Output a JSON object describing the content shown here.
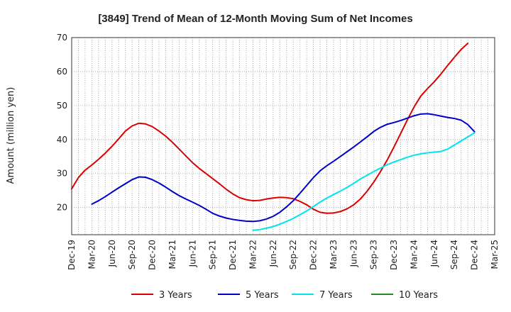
{
  "chart_data": {
    "type": "line",
    "title": "[3849]  Trend of Mean of 12-Month Moving Sum of Net Incomes",
    "ylabel": "Amount (million yen)",
    "xlabel": "",
    "ylim": [
      12,
      70
    ],
    "yticks": [
      20,
      30,
      40,
      50,
      60,
      70
    ],
    "grid": true,
    "legend_position": "bottom",
    "x_tick_labels": [
      "Dec-19",
      "Mar-20",
      "Jun-20",
      "Sep-20",
      "Dec-20",
      "Mar-21",
      "Jun-21",
      "Sep-21",
      "Dec-21",
      "Mar-22",
      "Jun-22",
      "Sep-22",
      "Dec-22",
      "Mar-23",
      "Jun-23",
      "Sep-23",
      "Dec-23",
      "Mar-24",
      "Jun-24",
      "Sep-24",
      "Dec-24",
      "Mar-25"
    ],
    "series": [
      {
        "name": "3 Years",
        "color": "#dd0000",
        "x": [
          "Dec-19",
          "Jan-20",
          "Feb-20",
          "Mar-20",
          "Apr-20",
          "May-20",
          "Jun-20",
          "Jul-20",
          "Aug-20",
          "Sep-20",
          "Oct-20",
          "Nov-20",
          "Dec-20",
          "Jan-21",
          "Feb-21",
          "Mar-21",
          "Apr-21",
          "May-21",
          "Jun-21",
          "Jul-21",
          "Aug-21",
          "Sep-21",
          "Oct-21",
          "Nov-21",
          "Dec-21",
          "Jan-22",
          "Feb-22",
          "Mar-22",
          "Apr-22",
          "May-22",
          "Jun-22",
          "Jul-22",
          "Aug-22",
          "Sep-22",
          "Oct-22",
          "Nov-22",
          "Dec-22",
          "Jan-23",
          "Feb-23",
          "Mar-23",
          "Apr-23",
          "May-23",
          "Jun-23",
          "Jul-23",
          "Aug-23",
          "Sep-23",
          "Oct-23",
          "Nov-23",
          "Dec-23",
          "Jan-24",
          "Feb-24",
          "Mar-24",
          "Apr-24",
          "May-24",
          "Jun-24",
          "Jul-24",
          "Aug-24",
          "Sep-24",
          "Oct-24",
          "Nov-24",
          "Dec-24"
        ],
        "values": [
          25.5,
          28.8,
          31.0,
          32.5,
          34.2,
          36.0,
          38.0,
          40.2,
          42.5,
          44.0,
          44.8,
          44.6,
          43.8,
          42.5,
          41.0,
          39.2,
          37.2,
          35.2,
          33.2,
          31.5,
          30.0,
          28.5,
          27.0,
          25.4,
          24.0,
          22.9,
          22.3,
          22.0,
          22.1,
          22.5,
          22.8,
          23.0,
          22.9,
          22.6,
          21.8,
          20.8,
          19.5,
          18.6,
          18.3,
          18.4,
          18.8,
          19.6,
          20.8,
          22.5,
          24.8,
          27.5,
          30.6,
          34.0,
          37.8,
          41.8,
          45.8,
          49.6,
          52.8,
          55.0,
          57.0,
          59.3,
          61.8,
          64.2,
          66.5,
          68.3,
          null
        ]
      },
      {
        "name": "5 Years",
        "color": "#0000cc",
        "x": [
          "Mar-20",
          "Apr-20",
          "May-20",
          "Jun-20",
          "Jul-20",
          "Aug-20",
          "Sep-20",
          "Oct-20",
          "Nov-20",
          "Dec-20",
          "Jan-21",
          "Feb-21",
          "Mar-21",
          "Apr-21",
          "May-21",
          "Jun-21",
          "Jul-21",
          "Aug-21",
          "Sep-21",
          "Oct-21",
          "Nov-21",
          "Dec-21",
          "Jan-22",
          "Feb-22",
          "Mar-22",
          "Apr-22",
          "May-22",
          "Jun-22",
          "Jul-22",
          "Aug-22",
          "Sep-22",
          "Oct-22",
          "Nov-22",
          "Dec-22",
          "Jan-23",
          "Feb-23",
          "Mar-23",
          "Apr-23",
          "May-23",
          "Jun-23",
          "Jul-23",
          "Aug-23",
          "Sep-23",
          "Oct-23",
          "Nov-23",
          "Dec-23",
          "Jan-24",
          "Feb-24",
          "Mar-24",
          "Apr-24",
          "May-24",
          "Jun-24",
          "Jul-24",
          "Aug-24",
          "Sep-24",
          "Oct-24",
          "Nov-24",
          "Dec-24"
        ],
        "values": [
          21.0,
          22.0,
          23.2,
          24.5,
          25.8,
          27.0,
          28.2,
          29.0,
          28.9,
          28.2,
          27.2,
          26.0,
          24.7,
          23.5,
          22.5,
          21.6,
          20.6,
          19.5,
          18.3,
          17.5,
          16.9,
          16.5,
          16.2,
          16.0,
          15.9,
          16.1,
          16.6,
          17.4,
          18.6,
          20.2,
          22.0,
          24.2,
          26.5,
          28.8,
          30.8,
          32.3,
          33.6,
          35.0,
          36.4,
          37.8,
          39.3,
          40.8,
          42.4,
          43.6,
          44.5,
          45.0,
          45.6,
          46.3,
          47.0,
          47.5,
          47.6,
          47.3,
          46.9,
          46.5,
          46.2,
          45.7,
          44.4,
          42.3
        ]
      },
      {
        "name": "7 Years",
        "color": "#00e5ee",
        "x": [
          "Mar-22",
          "Apr-22",
          "May-22",
          "Jun-22",
          "Jul-22",
          "Aug-22",
          "Sep-22",
          "Oct-22",
          "Nov-22",
          "Dec-22",
          "Jan-23",
          "Feb-23",
          "Mar-23",
          "Apr-23",
          "May-23",
          "Jun-23",
          "Jul-23",
          "Aug-23",
          "Sep-23",
          "Oct-23",
          "Nov-23",
          "Dec-23",
          "Jan-24",
          "Feb-24",
          "Mar-24",
          "Apr-24",
          "May-24",
          "Jun-24",
          "Jul-24",
          "Aug-24",
          "Sep-24",
          "Oct-24",
          "Nov-24",
          "Dec-24"
        ],
        "values": [
          13.3,
          13.5,
          13.9,
          14.4,
          15.1,
          15.9,
          16.8,
          17.9,
          19.0,
          20.3,
          21.6,
          22.8,
          23.8,
          24.8,
          25.9,
          27.1,
          28.4,
          29.5,
          30.6,
          31.6,
          32.6,
          33.4,
          34.1,
          34.8,
          35.4,
          35.8,
          36.1,
          36.3,
          36.5,
          37.2,
          38.4,
          39.6,
          40.8,
          42.0
        ]
      },
      {
        "name": "10 Years",
        "color": "#228b22",
        "x": [],
        "values": []
      }
    ]
  }
}
